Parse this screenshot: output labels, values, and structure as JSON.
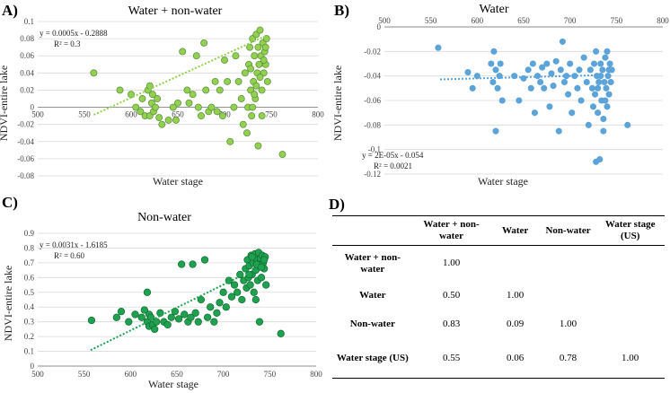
{
  "chart_data": [
    {
      "panel": "A)",
      "type": "scatter",
      "title": "Water + non-water",
      "xlabel": "Water stage",
      "ylabel": "NDVI-entire lake",
      "xlim": [
        500,
        800
      ],
      "ylim": [
        -0.08,
        0.1
      ],
      "xticks": [
        500,
        550,
        600,
        650,
        700,
        750,
        800
      ],
      "yticks": [
        -0.08,
        -0.06,
        -0.04,
        -0.02,
        0,
        0.02,
        0.04,
        0.06,
        0.08,
        0.1
      ],
      "xtick_labels": [
        "500",
        "550",
        "600",
        "650",
        "700",
        "750",
        "800"
      ],
      "ytick_labels": [
        "-0.08",
        "-0.06",
        "-0.04",
        "-0.02",
        "0",
        "0.02",
        "0.04",
        "0.06",
        "0.08",
        "0.1"
      ],
      "equation": "y = 0.0005x - 0.2888",
      "r2": "R² = 0.3",
      "trend": {
        "slope": 0.0005,
        "intercept": -0.2888,
        "x_range": [
          560,
          745
        ]
      },
      "marker_color": "#92d050",
      "marker_edge": "#5a8a3a",
      "trend_color": "#92d050",
      "axis_crosses_at_y": 0,
      "points": [
        [
          560,
          0.04
        ],
        [
          588,
          0.02
        ],
        [
          600,
          0.015
        ],
        [
          605,
          0.0
        ],
        [
          610,
          -0.005
        ],
        [
          612,
          0.01
        ],
        [
          615,
          -0.01
        ],
        [
          618,
          0.02
        ],
        [
          620,
          0.025
        ],
        [
          620,
          -0.01
        ],
        [
          622,
          0.005
        ],
        [
          623,
          0.015
        ],
        [
          624,
          -0.005
        ],
        [
          626,
          0.0
        ],
        [
          628,
          0.01
        ],
        [
          630,
          -0.012
        ],
        [
          633,
          -0.02
        ],
        [
          640,
          -0.015
        ],
        [
          645,
          0.0
        ],
        [
          648,
          -0.015
        ],
        [
          650,
          0.005
        ],
        [
          655,
          0.065
        ],
        [
          660,
          0.02
        ],
        [
          662,
          0.005
        ],
        [
          666,
          0.015
        ],
        [
          670,
          0.06
        ],
        [
          672,
          0.0
        ],
        [
          675,
          -0.01
        ],
        [
          678,
          0.075
        ],
        [
          680,
          0.02
        ],
        [
          683,
          -0.005
        ],
        [
          686,
          0.0
        ],
        [
          690,
          0.03
        ],
        [
          692,
          -0.005
        ],
        [
          695,
          0.02
        ],
        [
          698,
          -0.01
        ],
        [
          700,
          0.055
        ],
        [
          703,
          0.03
        ],
        [
          706,
          -0.04
        ],
        [
          710,
          0.0
        ],
        [
          712,
          0.06
        ],
        [
          715,
          0.03
        ],
        [
          718,
          0.01
        ],
        [
          720,
          -0.02
        ],
        [
          722,
          0.04
        ],
        [
          724,
          -0.03
        ],
        [
          725,
          0.0
        ],
        [
          726,
          0.05
        ],
        [
          727,
          0.07
        ],
        [
          728,
          0.02
        ],
        [
          729,
          -0.01
        ],
        [
          730,
          0.08
        ],
        [
          731,
          0.03
        ],
        [
          732,
          0.06
        ],
        [
          733,
          0.01
        ],
        [
          734,
          0.085
        ],
        [
          735,
          0.04
        ],
        [
          736,
          0.07
        ],
        [
          737,
          0.05
        ],
        [
          738,
          0.09
        ],
        [
          739,
          0.06
        ],
        [
          740,
          0.02
        ],
        [
          741,
          0.075
        ],
        [
          742,
          0.04
        ],
        [
          743,
          0.065
        ],
        [
          744,
          0.05
        ],
        [
          745,
          0.08
        ],
        [
          746,
          0.03
        ],
        [
          730,
          0.0
        ],
        [
          736,
          -0.045
        ],
        [
          740,
          -0.01
        ],
        [
          762,
          -0.055
        ],
        [
          728,
          0.045
        ],
        [
          734,
          0.025
        ],
        [
          738,
          0.035
        ],
        [
          742,
          0.055
        ],
        [
          744,
          0.07
        ],
        [
          732,
          0.015
        ]
      ]
    },
    {
      "panel": "B)",
      "type": "scatter",
      "title": "Water",
      "xlabel": "Water stage",
      "ylabel": "NDVI-entire lake",
      "xlim": [
        500,
        800
      ],
      "ylim": [
        -0.12,
        0.0
      ],
      "xticks": [
        500,
        550,
        600,
        650,
        700,
        750,
        800
      ],
      "yticks": [
        -0.12,
        -0.1,
        -0.08,
        -0.06,
        -0.04,
        -0.02,
        0
      ],
      "xtick_labels": [
        "500",
        "550",
        "600",
        "650",
        "700",
        "750",
        "800"
      ],
      "ytick_labels": [
        "-0.12",
        "-0.1",
        "-0.08",
        "-0.06",
        "-0.04",
        "-0.02",
        "0"
      ],
      "equation": "y = 2E-05x - 0.054",
      "r2": "R² = 0.0021",
      "trend": {
        "slope": 2e-05,
        "intercept": -0.054,
        "x_range": [
          560,
          745
        ]
      },
      "marker_color": "#5ba3d9",
      "marker_edge": "#5ba3d9",
      "trend_color": "#5ba3d9",
      "axis_crosses_at_y": 0,
      "points": [
        [
          558,
          -0.017
        ],
        [
          590,
          -0.037
        ],
        [
          595,
          -0.05
        ],
        [
          600,
          -0.04
        ],
        [
          615,
          -0.03
        ],
        [
          617,
          -0.045
        ],
        [
          618,
          -0.02
        ],
        [
          620,
          -0.085
        ],
        [
          620,
          -0.035
        ],
        [
          622,
          -0.05
        ],
        [
          624,
          -0.04
        ],
        [
          625,
          -0.03
        ],
        [
          627,
          -0.06
        ],
        [
          640,
          -0.04
        ],
        [
          645,
          -0.06
        ],
        [
          650,
          -0.042
        ],
        [
          655,
          -0.035
        ],
        [
          658,
          -0.05
        ],
        [
          660,
          -0.03
        ],
        [
          662,
          -0.07
        ],
        [
          665,
          -0.04
        ],
        [
          668,
          -0.045
        ],
        [
          670,
          -0.033
        ],
        [
          672,
          -0.05
        ],
        [
          675,
          -0.03
        ],
        [
          678,
          -0.065
        ],
        [
          680,
          -0.038
        ],
        [
          682,
          -0.048
        ],
        [
          685,
          -0.028
        ],
        [
          688,
          -0.085
        ],
        [
          690,
          -0.035
        ],
        [
          692,
          -0.012
        ],
        [
          694,
          -0.045
        ],
        [
          696,
          -0.04
        ],
        [
          698,
          -0.055
        ],
        [
          700,
          -0.03
        ],
        [
          702,
          -0.07
        ],
        [
          705,
          -0.04
        ],
        [
          708,
          -0.05
        ],
        [
          710,
          -0.035
        ],
        [
          712,
          -0.06
        ],
        [
          715,
          -0.025
        ],
        [
          718,
          -0.045
        ],
        [
          720,
          -0.08
        ],
        [
          722,
          -0.035
        ],
        [
          724,
          -0.05
        ],
        [
          725,
          -0.065
        ],
        [
          726,
          -0.03
        ],
        [
          727,
          -0.055
        ],
        [
          728,
          -0.02
        ],
        [
          728,
          -0.11
        ],
        [
          729,
          -0.04
        ],
        [
          730,
          -0.07
        ],
        [
          731,
          -0.045
        ],
        [
          732,
          -0.108
        ],
        [
          733,
          -0.03
        ],
        [
          734,
          -0.06
        ],
        [
          735,
          -0.035
        ],
        [
          736,
          -0.075
        ],
        [
          737,
          -0.045
        ],
        [
          738,
          -0.025
        ],
        [
          739,
          -0.05
        ],
        [
          740,
          -0.065
        ],
        [
          741,
          -0.04
        ],
        [
          742,
          -0.055
        ],
        [
          743,
          -0.03
        ],
        [
          744,
          -0.045
        ],
        [
          745,
          -0.035
        ],
        [
          736,
          -0.085
        ],
        [
          740,
          -0.02
        ],
        [
          762,
          -0.08
        ],
        [
          730,
          -0.05
        ],
        [
          738,
          -0.06
        ],
        [
          733,
          -0.04
        ],
        [
          742,
          -0.035
        ]
      ]
    },
    {
      "panel": "C)",
      "type": "scatter",
      "title": "Non-water",
      "xlabel": "Water stage",
      "ylabel": "NDVI-entire lake",
      "xlim": [
        500,
        800
      ],
      "ylim": [
        0,
        0.9
      ],
      "xticks": [
        500,
        550,
        600,
        650,
        700,
        750,
        800
      ],
      "yticks": [
        0,
        0.1,
        0.2,
        0.3,
        0.4,
        0.5,
        0.6,
        0.7,
        0.8,
        0.9
      ],
      "xtick_labels": [
        "500",
        "550",
        "600",
        "650",
        "700",
        "750",
        "800"
      ],
      "ytick_labels": [
        "0",
        "0.1",
        "0.2",
        "0.3",
        "0.4",
        "0.5",
        "0.6",
        "0.7",
        "0.8",
        "0.9"
      ],
      "equation": "y = 0.0031x - 1.6185",
      "r2": "R² = 0.60",
      "trend": {
        "slope": 0.0031,
        "intercept": -1.6185,
        "x_range": [
          557,
          745
        ]
      },
      "marker_color": "#1fa150",
      "marker_edge": "#0f6b32",
      "trend_color": "#1fa150",
      "axis_crosses_at_y": 0,
      "points": [
        [
          558,
          0.31
        ],
        [
          585,
          0.33
        ],
        [
          590,
          0.37
        ],
        [
          598,
          0.3
        ],
        [
          605,
          0.35
        ],
        [
          612,
          0.33
        ],
        [
          615,
          0.38
        ],
        [
          618,
          0.3
        ],
        [
          618,
          0.5
        ],
        [
          620,
          0.27
        ],
        [
          620,
          0.35
        ],
        [
          622,
          0.33
        ],
        [
          624,
          0.28
        ],
        [
          626,
          0.25
        ],
        [
          628,
          0.3
        ],
        [
          632,
          0.36
        ],
        [
          636,
          0.3
        ],
        [
          640,
          0.28
        ],
        [
          644,
          0.33
        ],
        [
          648,
          0.37
        ],
        [
          652,
          0.32
        ],
        [
          655,
          0.69
        ],
        [
          658,
          0.35
        ],
        [
          662,
          0.3
        ],
        [
          665,
          0.33
        ],
        [
          667,
          0.69
        ],
        [
          670,
          0.36
        ],
        [
          673,
          0.3
        ],
        [
          676,
          0.45
        ],
        [
          680,
          0.72
        ],
        [
          683,
          0.33
        ],
        [
          686,
          0.4
        ],
        [
          690,
          0.3
        ],
        [
          693,
          0.36
        ],
        [
          696,
          0.43
        ],
        [
          700,
          0.5
        ],
        [
          703,
          0.4
        ],
        [
          706,
          0.58
        ],
        [
          709,
          0.47
        ],
        [
          712,
          0.55
        ],
        [
          715,
          0.5
        ],
        [
          718,
          0.62
        ],
        [
          720,
          0.45
        ],
        [
          722,
          0.58
        ],
        [
          724,
          0.66
        ],
        [
          725,
          0.53
        ],
        [
          726,
          0.72
        ],
        [
          727,
          0.6
        ],
        [
          728,
          0.68
        ],
        [
          729,
          0.55
        ],
        [
          730,
          0.75
        ],
        [
          731,
          0.62
        ],
        [
          732,
          0.7
        ],
        [
          733,
          0.5
        ],
        [
          734,
          0.76
        ],
        [
          735,
          0.65
        ],
        [
          736,
          0.72
        ],
        [
          737,
          0.58
        ],
        [
          738,
          0.77
        ],
        [
          739,
          0.68
        ],
        [
          740,
          0.73
        ],
        [
          741,
          0.6
        ],
        [
          742,
          0.75
        ],
        [
          743,
          0.7
        ],
        [
          744,
          0.66
        ],
        [
          745,
          0.74
        ],
        [
          746,
          0.55
        ],
        [
          735,
          0.45
        ],
        [
          739,
          0.3
        ],
        [
          762,
          0.22
        ],
        [
          728,
          0.62
        ],
        [
          736,
          0.69
        ],
        [
          744,
          0.72
        ],
        [
          731,
          0.74
        ],
        [
          741,
          0.67
        ]
      ]
    }
  ],
  "panelD": {
    "letter": "D)",
    "headers": [
      "",
      "Water + non-water",
      "Water",
      "Non-water",
      "Water stage (US)"
    ],
    "rows": [
      {
        "label": "Water + non-water",
        "values": [
          "1.00",
          "",
          "",
          ""
        ]
      },
      {
        "label": "Water",
        "values": [
          "0.50",
          "1.00",
          "",
          ""
        ]
      },
      {
        "label": "Non-water",
        "values": [
          "0.83",
          "0.09",
          "1.00",
          ""
        ]
      },
      {
        "label": "Water stage (US)",
        "values": [
          "0.55",
          "0.06",
          "0.78",
          "1.00"
        ]
      }
    ]
  }
}
